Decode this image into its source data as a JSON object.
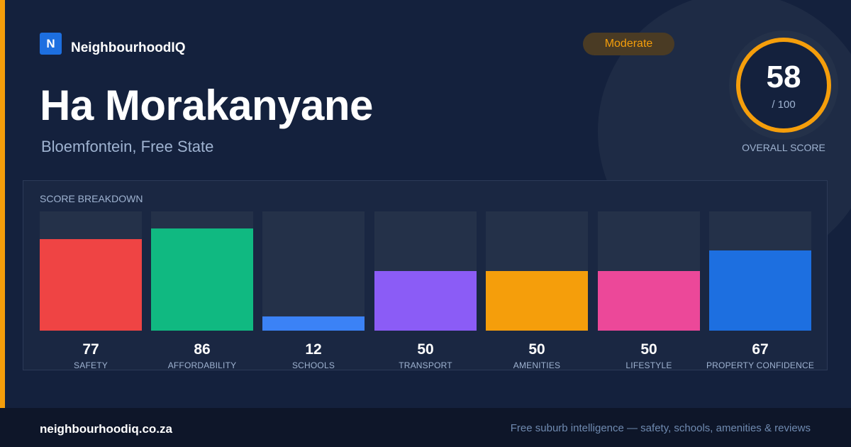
{
  "brand": {
    "logo_letter": "N",
    "name": "NeighbourhoodIQ"
  },
  "header": {
    "title": "Ha Morakanyane",
    "subtitle": "Bloemfontein, Free State",
    "badge": "Moderate"
  },
  "overall": {
    "value": "58",
    "max": "/ 100",
    "label": "OVERALL SCORE"
  },
  "breakdown": {
    "title": "SCORE BREAKDOWN",
    "items": [
      {
        "label": "SAFETY",
        "value": "77",
        "score": 77,
        "color": "#ef4444"
      },
      {
        "label": "AFFORDABILITY",
        "value": "86",
        "score": 86,
        "color": "#10b981"
      },
      {
        "label": "SCHOOLS",
        "value": "12",
        "score": 12,
        "color": "#3b82f6"
      },
      {
        "label": "TRANSPORT",
        "value": "50",
        "score": 50,
        "color": "#8b5cf6"
      },
      {
        "label": "AMENITIES",
        "value": "50",
        "score": 50,
        "color": "#f59e0b"
      },
      {
        "label": "LIFESTYLE",
        "value": "50",
        "score": 50,
        "color": "#ec4899"
      },
      {
        "label": "PROPERTY CONFIDENCE",
        "value": "67",
        "score": 67,
        "color": "#1d6fe0"
      }
    ]
  },
  "footer": {
    "site": "neighbourhoodiq.co.za",
    "tagline": "Free suburb intelligence — safety, schools, amenities & reviews"
  },
  "colors": {
    "accent": "#f59e0b",
    "background": "#14213d",
    "brand": "#1d6fe0"
  }
}
